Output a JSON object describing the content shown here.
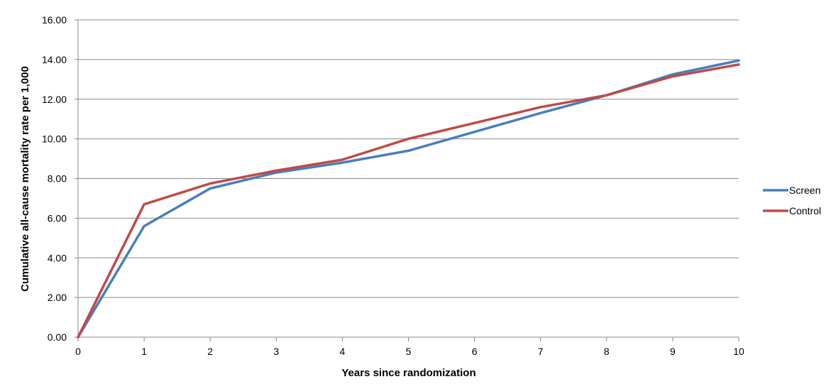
{
  "chart_data": {
    "type": "line",
    "title": "",
    "xlabel": "Years since randomization",
    "ylabel": "Cumulative all-cause mortality rate per 1,000",
    "x": [
      0,
      1,
      2,
      3,
      4,
      5,
      6,
      7,
      8,
      9,
      10
    ],
    "x_tick_labels": [
      "0",
      "1",
      "2",
      "3",
      "4",
      "5",
      "6",
      "7",
      "8",
      "9",
      "10"
    ],
    "y_tick_labels": [
      "0.00",
      "2.00",
      "4.00",
      "6.00",
      "8.00",
      "10.00",
      "12.00",
      "14.00",
      "16.00"
    ],
    "xlim": [
      0,
      10
    ],
    "ylim": [
      0,
      16
    ],
    "grid": "horizontal",
    "legend_position": "right",
    "series": [
      {
        "name": "Screen",
        "color": "#4a7ebb",
        "values": [
          0.0,
          5.6,
          7.5,
          8.3,
          8.8,
          9.4,
          10.35,
          11.3,
          12.2,
          13.25,
          13.95
        ]
      },
      {
        "name": "Control",
        "color": "#be4b48",
        "values": [
          0.0,
          6.7,
          7.75,
          8.4,
          8.95,
          10.0,
          10.8,
          11.6,
          12.2,
          13.15,
          13.75
        ]
      }
    ]
  }
}
